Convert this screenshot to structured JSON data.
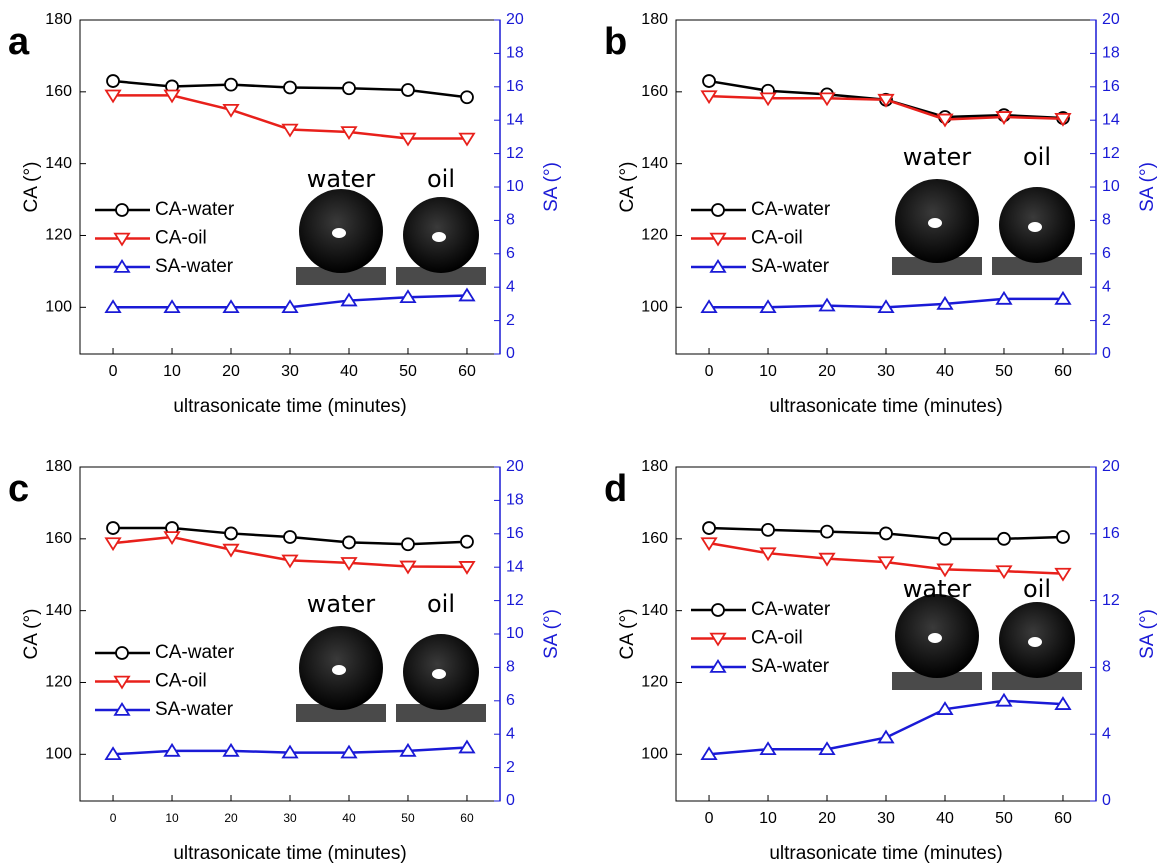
{
  "chart_data": [
    {
      "type": "line",
      "panel_label": "a",
      "xlabel": "ultrasonicate time (minutes)",
      "ylabel": "CA (°)",
      "y2label": "SA (°)",
      "x": [
        0,
        10,
        20,
        30,
        40,
        50,
        60
      ],
      "xlim": [
        -5.6,
        65.6
      ],
      "xticks": [
        0,
        10,
        20,
        30,
        40,
        50,
        60
      ],
      "ylim": [
        87,
        180
      ],
      "yticks": [
        100,
        120,
        140,
        160,
        180
      ],
      "y2lim": [
        0,
        20
      ],
      "y2ticks": [
        0,
        2,
        4,
        6,
        8,
        10,
        12,
        14,
        16,
        18,
        20
      ],
      "y2color": "#1a1ad6",
      "annotations": [
        "water",
        "oil"
      ],
      "series": [
        {
          "name": "CA-water",
          "color": "#000000",
          "marker": "circle",
          "values": [
            163,
            161.5,
            162,
            161.2,
            161,
            160.5,
            158.5
          ]
        },
        {
          "name": "CA-oil",
          "color": "#e8201b",
          "marker": "triangle-down",
          "values": [
            159,
            159,
            155,
            149.5,
            148.8,
            147,
            147
          ]
        },
        {
          "name": "SA-water",
          "color": "#1a1ad6",
          "marker": "triangle-up",
          "axis": "y2",
          "values": [
            2.8,
            2.8,
            2.8,
            2.8,
            3.2,
            3.4,
            3.5
          ]
        }
      ]
    },
    {
      "type": "line",
      "panel_label": "b",
      "xlabel": "ultrasonicate time (minutes)",
      "ylabel": "CA (°)",
      "y2label": "SA (°)",
      "x": [
        0,
        10,
        20,
        30,
        40,
        50,
        60
      ],
      "xlim": [
        -5.6,
        65.6
      ],
      "xticks": [
        0,
        10,
        20,
        30,
        40,
        50,
        60
      ],
      "ylim": [
        87,
        180
      ],
      "yticks": [
        100,
        120,
        140,
        160,
        180
      ],
      "y2lim": [
        0,
        20
      ],
      "y2ticks": [
        0,
        2,
        4,
        6,
        8,
        10,
        12,
        14,
        16,
        18,
        20
      ],
      "y2color": "#1a1ad6",
      "annotations": [
        "water",
        "oil"
      ],
      "series": [
        {
          "name": "CA-water",
          "color": "#000000",
          "marker": "circle",
          "values": [
            163,
            160.3,
            159.3,
            157.8,
            153,
            153.5,
            152.7
          ]
        },
        {
          "name": "CA-oil",
          "color": "#e8201b",
          "marker": "triangle-down",
          "values": [
            158.8,
            158.2,
            158.2,
            157.8,
            152.3,
            153,
            152.5
          ]
        },
        {
          "name": "SA-water",
          "color": "#1a1ad6",
          "marker": "triangle-up",
          "axis": "y2",
          "values": [
            2.8,
            2.8,
            2.9,
            2.8,
            3.0,
            3.3,
            3.3
          ]
        }
      ]
    },
    {
      "type": "line",
      "panel_label": "c",
      "xlabel": "ultrasonicate time (minutes)",
      "ylabel": "CA (°)",
      "y2label": "SA (°)",
      "x": [
        0,
        10,
        20,
        30,
        40,
        50,
        60
      ],
      "xlim": [
        -5.6,
        65.6
      ],
      "xticks": [
        0,
        10,
        20,
        30,
        40,
        50,
        60
      ],
      "ylim": [
        87,
        180
      ],
      "yticks": [
        100,
        120,
        140,
        160,
        180
      ],
      "y2lim": [
        0,
        20
      ],
      "y2ticks": [
        0,
        2,
        4,
        6,
        8,
        10,
        12,
        14,
        16,
        18,
        20
      ],
      "y2color": "#1a1ad6",
      "annotations": [
        "water",
        "oil"
      ],
      "series": [
        {
          "name": "CA-water",
          "color": "#000000",
          "marker": "circle",
          "values": [
            163,
            163,
            161.5,
            160.5,
            159,
            158.5,
            159.2
          ]
        },
        {
          "name": "CA-oil",
          "color": "#e8201b",
          "marker": "triangle-down",
          "values": [
            158.8,
            160.5,
            157,
            154,
            153.3,
            152.3,
            152.2
          ]
        },
        {
          "name": "SA-water",
          "color": "#1a1ad6",
          "marker": "triangle-up",
          "axis": "y2",
          "values": [
            2.8,
            3.0,
            3.0,
            2.9,
            2.9,
            3.0,
            3.2
          ]
        }
      ]
    },
    {
      "type": "line",
      "panel_label": "d",
      "xlabel": "ultrasonicate time (minutes)",
      "ylabel": "CA (°)",
      "y2label": "SA (°)",
      "x": [
        0,
        10,
        20,
        30,
        40,
        50,
        60
      ],
      "xlim": [
        -5.6,
        65.6
      ],
      "xticks": [
        0,
        10,
        20,
        30,
        40,
        50,
        60
      ],
      "ylim": [
        87,
        180
      ],
      "yticks": [
        100,
        120,
        140,
        160,
        180
      ],
      "y2lim": [
        0,
        20
      ],
      "y2ticks": [
        0,
        4,
        8,
        12,
        16,
        20
      ],
      "y2color": "#1a1ad6",
      "annotations": [
        "water",
        "oil"
      ],
      "series": [
        {
          "name": "CA-water",
          "color": "#000000",
          "marker": "circle",
          "values": [
            163,
            162.5,
            162,
            161.5,
            160,
            160,
            160.5
          ]
        },
        {
          "name": "CA-oil",
          "color": "#e8201b",
          "marker": "triangle-down",
          "values": [
            158.8,
            156,
            154.5,
            153.5,
            151.5,
            151,
            150.3
          ]
        },
        {
          "name": "SA-water",
          "color": "#1a1ad6",
          "marker": "triangle-up",
          "axis": "y2",
          "values": [
            2.8,
            3.1,
            3.1,
            3.8,
            5.5,
            6.0,
            5.8
          ]
        }
      ]
    }
  ]
}
